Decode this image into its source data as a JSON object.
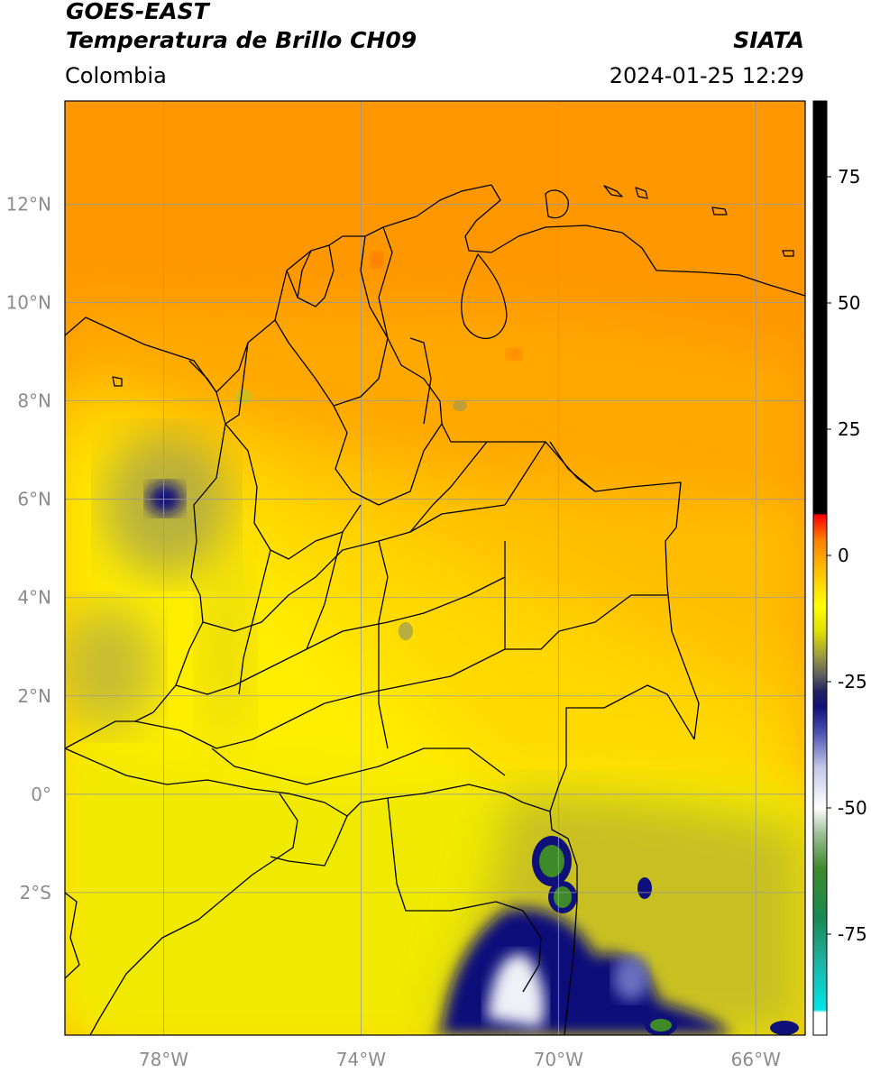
{
  "header": {
    "source": "GOES-EAST",
    "product": "Temperatura de Brillo CH09",
    "region": "Colombia",
    "agency": "SIATA",
    "datetime": "2024-01-25 12:29"
  },
  "map": {
    "lon_range": [
      -80,
      -65
    ],
    "lat_range": [
      -4.9,
      14.1
    ],
    "lat_ticks": [
      {
        "value": 12,
        "label": "12°N"
      },
      {
        "value": 10,
        "label": "10°N"
      },
      {
        "value": 8,
        "label": "8°N"
      },
      {
        "value": 6,
        "label": "6°N"
      },
      {
        "value": 4,
        "label": "4°N"
      },
      {
        "value": 2,
        "label": "2°N"
      },
      {
        "value": 0,
        "label": "0°"
      },
      {
        "value": -2,
        "label": "2°S"
      }
    ],
    "lon_ticks": [
      {
        "value": -78,
        "label": "78°W"
      },
      {
        "value": -74,
        "label": "74°W"
      },
      {
        "value": -70,
        "label": "70°W"
      },
      {
        "value": -66,
        "label": "66°W"
      }
    ],
    "grid_color": "#9a9a9a",
    "border_color": "#000000"
  },
  "colorbar": {
    "range": [
      -95,
      90
    ],
    "ticks": [
      {
        "value": 75,
        "label": "75"
      },
      {
        "value": 50,
        "label": "50"
      },
      {
        "value": 25,
        "label": "25"
      },
      {
        "value": 0,
        "label": "0"
      },
      {
        "value": -25,
        "label": "-25"
      },
      {
        "value": -50,
        "label": "-50"
      },
      {
        "value": -75,
        "label": "-75"
      }
    ],
    "stops": [
      {
        "value": -95,
        "color": "#ffffff"
      },
      {
        "value": -90.5,
        "color": "#ffffff"
      },
      {
        "value": -90,
        "color": "#00e6e6"
      },
      {
        "value": -80,
        "color": "#20b0a0"
      },
      {
        "value": -72,
        "color": "#188a55"
      },
      {
        "value": -62,
        "color": "#3e8a2a"
      },
      {
        "value": -55,
        "color": "#9fc09a"
      },
      {
        "value": -50,
        "color": "#ffffff"
      },
      {
        "value": -42,
        "color": "#c4c8e8"
      },
      {
        "value": -35,
        "color": "#4a52b0"
      },
      {
        "value": -30,
        "color": "#10107a"
      },
      {
        "value": -27,
        "color": "#202060"
      },
      {
        "value": -24,
        "color": "#5a5a60"
      },
      {
        "value": -20,
        "color": "#9a9a40"
      },
      {
        "value": -15,
        "color": "#e0e000"
      },
      {
        "value": -10,
        "color": "#ffff00"
      },
      {
        "value": -3,
        "color": "#ffc000"
      },
      {
        "value": 3,
        "color": "#ff8000"
      },
      {
        "value": 8,
        "color": "#ff0000"
      },
      {
        "value": 8.3,
        "color": "#000000"
      },
      {
        "value": 90,
        "color": "#000000"
      }
    ]
  },
  "field": {
    "colors": {
      "caribbean": "#ff9800",
      "north": "#ffa800",
      "llanos": "#ffbc00",
      "central": "#ffd800",
      "yellow": "#ffee00",
      "south": "#f0ea00",
      "olive": "#c8c020",
      "gray": "#9a9a5a",
      "navy": "#10107a",
      "white": "#f0f0f8",
      "green": "#3e8a2a",
      "hot": "#ff3c00"
    }
  }
}
